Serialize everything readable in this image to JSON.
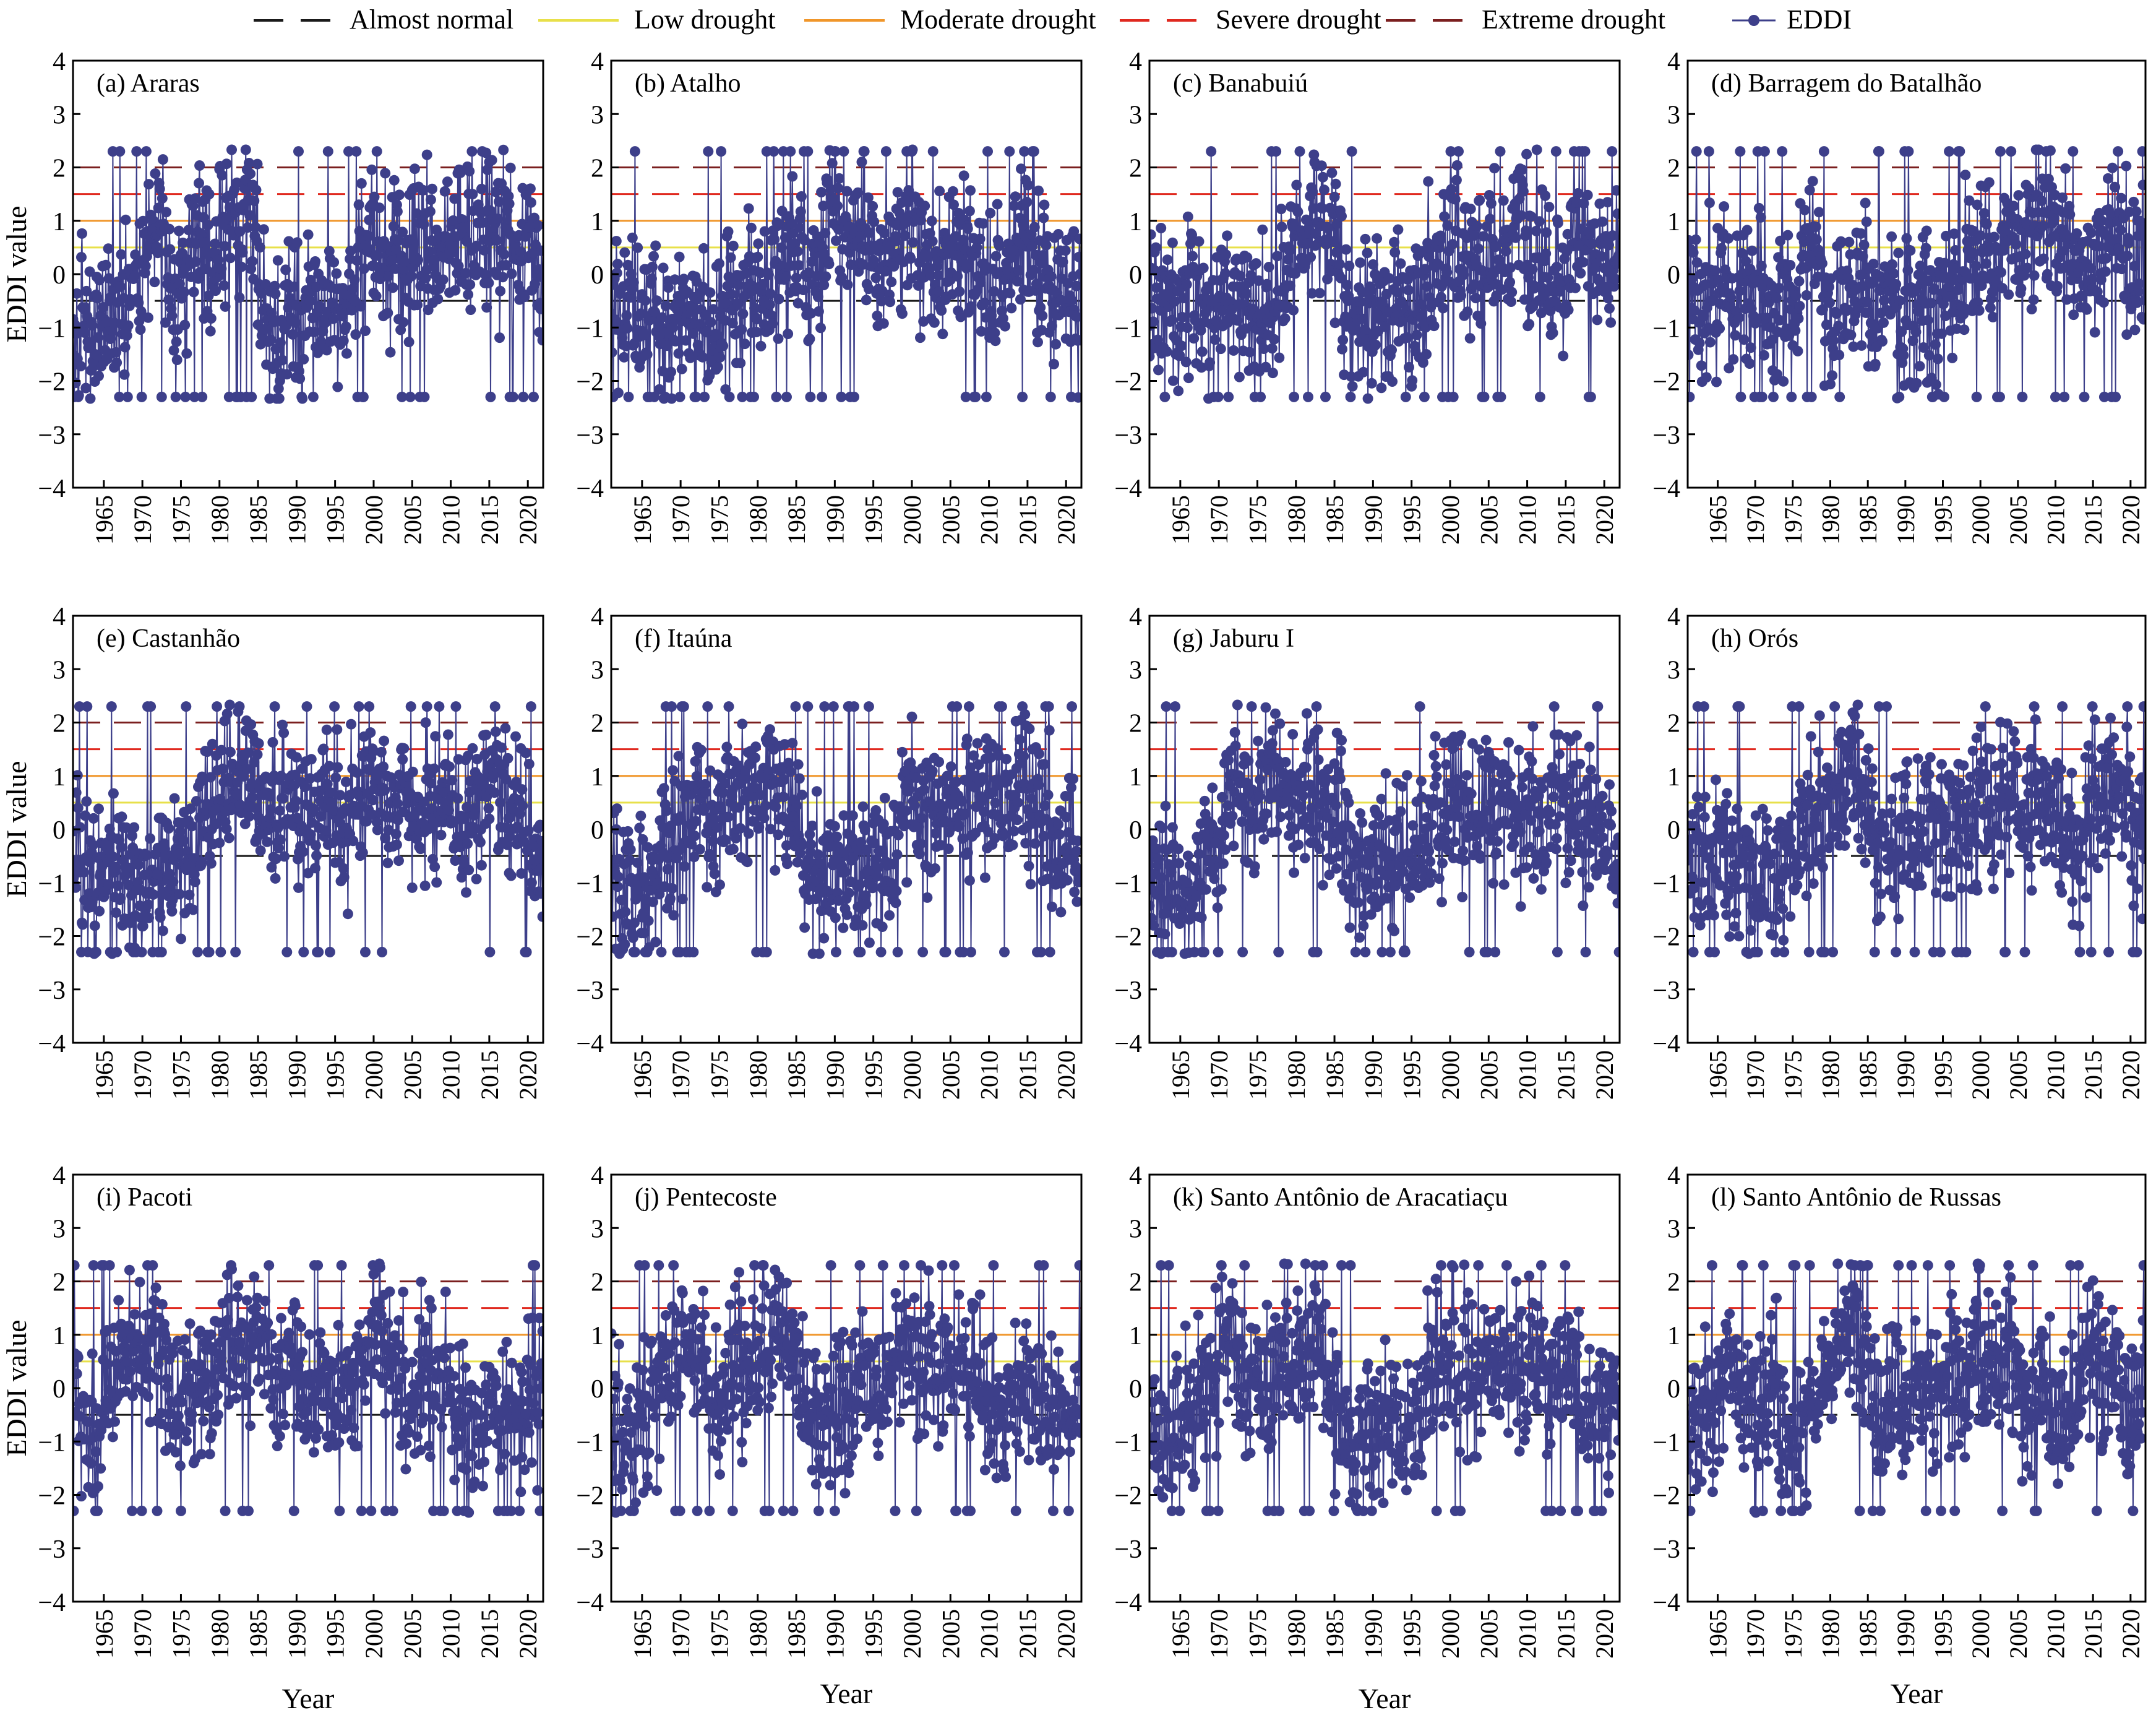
{
  "legend": {
    "items": [
      {
        "label": "Almost normal",
        "color": "#1a1a1a",
        "style": "dashed"
      },
      {
        "label": "Low drought",
        "color": "#e8e04a",
        "style": "solid"
      },
      {
        "label": "Moderate drought",
        "color": "#f0962a",
        "style": "solid"
      },
      {
        "label": "Severe drought",
        "color": "#e0291f",
        "style": "dashed"
      },
      {
        "label": "Extreme drought",
        "color": "#7b1f1f",
        "style": "dashed"
      },
      {
        "label": "EDDI",
        "color": "#3d3f8a",
        "style": "marker"
      }
    ]
  },
  "axis_text": {
    "ylabel": "EDDI value",
    "xlabel": "Year"
  },
  "chart_data": {
    "type": "line",
    "series_name": "EDDI",
    "x_range": [
      1961,
      2021
    ],
    "y_range": [
      -4,
      4
    ],
    "y_ticks": [
      "4",
      "3",
      "2",
      "1",
      "0",
      "−1",
      "−2",
      "−3",
      "−4"
    ],
    "x_ticks": [
      "1965",
      "1970",
      "1975",
      "1980",
      "1985",
      "1990",
      "1995",
      "2000",
      "2005",
      "2010",
      "2015",
      "2020"
    ],
    "x_tick_values": [
      1965,
      1970,
      1975,
      1980,
      1985,
      1990,
      1995,
      2000,
      2005,
      2010,
      2015,
      2020
    ],
    "thresholds": [
      {
        "name": "Almost normal",
        "value": -0.5,
        "color": "#1a1a1a",
        "style": "dashed"
      },
      {
        "name": "Low drought",
        "value": 0.5,
        "color": "#e8e04a",
        "style": "solid"
      },
      {
        "name": "Moderate drought",
        "value": 1.0,
        "color": "#f0962a",
        "style": "solid"
      },
      {
        "name": "Severe drought",
        "value": 1.5,
        "color": "#e0291f",
        "style": "dashed"
      },
      {
        "name": "Extreme drought",
        "value": 2.0,
        "color": "#7b1f1f",
        "style": "dashed"
      }
    ],
    "panels": [
      {
        "title": "(a) Araras",
        "yearly_mean": [
          -1.1,
          -0.9,
          -1.2,
          -0.8,
          -0.6,
          -0.9,
          -0.7,
          -0.3,
          0.0,
          0.3,
          0.9,
          1.1,
          0.2,
          -0.3,
          0.1,
          0.5,
          0.8,
          0.4,
          0.7,
          0.9,
          1.0,
          0.8,
          1.3,
          1.1,
          -0.7,
          -0.9,
          -1.2,
          -0.8,
          -0.6,
          -0.9,
          -0.7,
          -0.6,
          -0.8,
          -0.4,
          -0.6,
          -0.3,
          -0.1,
          0.3,
          0.9,
          0.4,
          0.3,
          0.4,
          0.2,
          0.5,
          0.6,
          0.7,
          0.7,
          0.5,
          0.6,
          0.9,
          0.8,
          0.6,
          0.7,
          0.8,
          0.9,
          0.6,
          0.7,
          0.5,
          0.3,
          0.2,
          0.1
        ]
      },
      {
        "title": "(b) Atalho",
        "yearly_mean": [
          -0.4,
          -0.7,
          -0.5,
          -0.9,
          -0.8,
          -0.6,
          -1.0,
          -0.9,
          -0.7,
          -0.5,
          -0.9,
          -1.1,
          -0.8,
          -1.0,
          -0.6,
          -0.3,
          -0.5,
          -0.2,
          -0.4,
          0.1,
          -0.3,
          0.3,
          0.5,
          0.6,
          0.2,
          -0.1,
          0.4,
          0.9,
          1.1,
          0.8,
          0.5,
          0.7,
          0.6,
          0.4,
          0.2,
          0.1,
          0.3,
          0.5,
          0.7,
          0.9,
          0.4,
          0.2,
          -0.1,
          0.3,
          0.5,
          0.6,
          0.2,
          0.1,
          -0.3,
          -0.5,
          -0.2,
          0.0,
          0.4,
          0.8,
          0.9,
          0.3,
          -0.1,
          -0.4,
          -0.2,
          -0.5,
          -0.6
        ]
      },
      {
        "title": "(c) Banabuiú",
        "yearly_mean": [
          -0.6,
          -0.8,
          -0.5,
          -0.9,
          -0.7,
          -0.4,
          -0.6,
          -0.8,
          -0.5,
          -0.3,
          -0.6,
          -0.4,
          -0.7,
          -0.9,
          -0.8,
          -1.0,
          -0.6,
          -0.2,
          0.3,
          0.5,
          0.8,
          1.0,
          0.9,
          0.7,
          0.4,
          -0.8,
          -1.1,
          -1.3,
          -0.7,
          -0.5,
          -0.9,
          -0.6,
          -0.4,
          -0.7,
          -0.9,
          -0.3,
          0.1,
          0.3,
          0.5,
          0.8,
          0.2,
          0.4,
          0.1,
          0.3,
          0.6,
          0.5,
          0.2,
          0.7,
          0.9,
          0.4,
          0.6,
          0.2,
          -0.3,
          -0.1,
          0.3,
          0.6,
          0.8,
          0.5,
          0.4,
          0.2,
          0.3
        ]
      },
      {
        "title": "(d) Barragem do Batalhão",
        "yearly_mean": [
          -0.5,
          -0.8,
          -0.3,
          -0.6,
          0.2,
          -0.4,
          -0.7,
          -0.2,
          -0.5,
          -0.3,
          -0.6,
          -0.9,
          -0.4,
          -0.7,
          -0.5,
          0.3,
          0.6,
          0.2,
          -0.4,
          -0.6,
          -0.3,
          -0.5,
          -0.2,
          0.1,
          -0.9,
          -1.1,
          -0.8,
          -0.6,
          -0.9,
          -0.5,
          -0.7,
          -0.4,
          -0.8,
          -0.6,
          -0.3,
          -0.5,
          -0.2,
          0.1,
          0.4,
          0.6,
          0.3,
          0.5,
          0.7,
          0.8,
          0.6,
          0.9,
          1.1,
          0.8,
          0.7,
          0.9,
          0.6,
          0.3,
          0.5,
          0.2,
          0.4,
          0.6,
          0.8,
          0.4,
          0.3,
          0.2,
          0.1
        ]
      },
      {
        "title": "(e) Castanhão",
        "yearly_mean": [
          -0.6,
          -0.8,
          -0.9,
          -1.0,
          -0.7,
          -0.9,
          -0.6,
          -0.8,
          -1.1,
          -0.9,
          -0.7,
          -0.5,
          -0.9,
          -0.6,
          -0.4,
          -0.2,
          0.1,
          0.3,
          0.5,
          0.7,
          0.9,
          1.1,
          1.0,
          1.2,
          0.6,
          0.2,
          -0.1,
          0.4,
          0.7,
          0.3,
          0.1,
          0.4,
          0.6,
          0.8,
          0.4,
          0.2,
          0.5,
          0.7,
          0.9,
          0.6,
          0.3,
          0.5,
          0.7,
          0.4,
          0.2,
          0.1,
          0.3,
          0.6,
          0.4,
          0.2,
          -0.1,
          0.3,
          0.5,
          0.7,
          0.6,
          0.8,
          0.5,
          0.3,
          0.1,
          -0.2,
          -0.4
        ]
      },
      {
        "title": "(f) Itaúna",
        "yearly_mean": [
          -1.0,
          -1.3,
          -1.1,
          -0.8,
          -1.2,
          -0.9,
          -0.6,
          -0.4,
          -0.2,
          0.1,
          0.4,
          0.8,
          0.3,
          -0.2,
          0.2,
          0.5,
          0.7,
          0.4,
          0.6,
          0.8,
          0.9,
          0.7,
          0.5,
          0.6,
          0.3,
          -0.6,
          -0.9,
          -1.1,
          -0.7,
          -0.5,
          -0.8,
          -0.6,
          -0.4,
          -0.7,
          -0.3,
          -0.5,
          -0.2,
          0.1,
          0.3,
          0.5,
          0.2,
          0.4,
          0.1,
          0.2,
          0.3,
          0.4,
          0.6,
          0.5,
          0.3,
          0.7,
          0.6,
          0.4,
          0.8,
          0.9,
          0.5,
          0.3,
          0.2,
          -0.1,
          -0.3,
          -0.2,
          -0.4
        ]
      },
      {
        "title": "(g) Jaburu I",
        "yearly_mean": [
          -0.8,
          -1.0,
          -1.2,
          -0.9,
          -1.1,
          -0.7,
          -0.9,
          -0.5,
          -0.3,
          0.1,
          0.5,
          0.8,
          0.4,
          0.2,
          0.6,
          0.9,
          1.1,
          0.8,
          0.6,
          0.9,
          1.0,
          0.7,
          0.5,
          0.6,
          0.3,
          -0.5,
          -0.8,
          -1.0,
          -0.6,
          -0.4,
          -0.7,
          -0.5,
          -0.3,
          -0.6,
          -0.2,
          -0.4,
          -0.1,
          0.2,
          0.4,
          0.6,
          0.3,
          0.5,
          0.2,
          0.4,
          0.5,
          0.3,
          0.6,
          0.4,
          0.2,
          0.5,
          0.3,
          0.1,
          0.4,
          0.6,
          0.2,
          0.4,
          0.3,
          0.1,
          -0.1,
          -0.3,
          -0.5
        ]
      },
      {
        "title": "(h) Orós",
        "yearly_mean": [
          -0.7,
          -0.5,
          -0.9,
          -0.4,
          0.3,
          -0.6,
          -0.8,
          -0.5,
          -0.9,
          -1.0,
          -0.7,
          -1.1,
          -0.8,
          -0.6,
          -0.4,
          -0.2,
          0.1,
          0.3,
          0.5,
          0.6,
          0.8,
          0.9,
          1.0,
          0.7,
          0.4,
          -0.5,
          -0.7,
          -0.4,
          -0.2,
          0.1,
          -0.1,
          0.2,
          0.3,
          0.1,
          -0.2,
          0.0,
          0.3,
          0.5,
          0.6,
          0.4,
          0.2,
          0.5,
          0.7,
          0.9,
          0.6,
          0.3,
          0.5,
          0.7,
          0.4,
          0.1,
          -0.3,
          -0.6,
          -0.2,
          0.3,
          0.5,
          0.7,
          0.8,
          0.5,
          0.3,
          0.1,
          -0.3
        ]
      },
      {
        "title": "(i) Pacoti",
        "yearly_mean": [
          -0.4,
          -0.7,
          -0.9,
          -0.5,
          -0.2,
          0.1,
          0.4,
          0.7,
          0.9,
          1.1,
          0.8,
          0.5,
          -0.3,
          -0.7,
          -0.5,
          -0.2,
          0.1,
          0.3,
          0.6,
          0.9,
          1.0,
          0.8,
          0.7,
          0.9,
          0.6,
          0.3,
          0.1,
          0.4,
          0.6,
          0.2,
          -0.1,
          -0.3,
          0.0,
          -0.2,
          -0.4,
          -0.1,
          0.2,
          0.5,
          0.8,
          1.0,
          0.7,
          0.4,
          0.1,
          -0.2,
          0.0,
          0.2,
          -0.1,
          -0.3,
          0.1,
          -0.2,
          -0.5,
          -0.7,
          -0.4,
          -0.6,
          -0.3,
          -0.5,
          -0.2,
          -0.4,
          -0.6,
          -0.3,
          -0.5
        ]
      },
      {
        "title": "(j) Pentecoste",
        "yearly_mean": [
          -0.6,
          -0.9,
          -0.7,
          -0.4,
          -0.6,
          -0.2,
          0.1,
          0.3,
          0.6,
          0.9,
          0.5,
          0.2,
          -0.2,
          -0.4,
          -0.1,
          0.3,
          0.5,
          0.2,
          0.4,
          0.7,
          0.9,
          1.0,
          0.8,
          0.6,
          0.3,
          -0.4,
          -0.6,
          -0.3,
          -0.5,
          -0.2,
          -0.4,
          -0.1,
          0.1,
          -0.2,
          0.0,
          0.2,
          0.4,
          0.7,
          0.9,
          0.6,
          0.3,
          0.5,
          0.2,
          0.4,
          0.1,
          0.3,
          0.5,
          0.2,
          -0.1,
          -0.4,
          -0.6,
          -0.3,
          -0.1,
          0.2,
          -0.2,
          -0.4,
          -0.6,
          -0.3,
          -0.5,
          -0.7,
          -0.4
        ]
      },
      {
        "title": "(k) Santo Antônio de Aracatiaçu",
        "yearly_mean": [
          -0.8,
          -1.1,
          -1.3,
          -0.9,
          -0.6,
          -0.8,
          -0.4,
          -0.1,
          0.3,
          0.7,
          0.9,
          0.6,
          0.2,
          0.4,
          0.1,
          0.3,
          0.6,
          0.8,
          0.5,
          0.7,
          0.9,
          0.8,
          0.6,
          0.4,
          -0.5,
          -0.9,
          -1.2,
          -0.8,
          -0.6,
          -0.9,
          -0.7,
          -0.5,
          -0.8,
          -0.6,
          -0.4,
          -0.2,
          0.1,
          0.3,
          0.5,
          0.7,
          0.4,
          0.2,
          0.0,
          0.2,
          0.4,
          0.1,
          0.3,
          0.5,
          0.2,
          0.4,
          0.6,
          0.3,
          0.1,
          0.4,
          0.2,
          0.0,
          -0.3,
          -0.5,
          -0.2,
          -0.4,
          -0.3
        ]
      },
      {
        "title": "(l) Santo Antônio de Russas",
        "yearly_mean": [
          -0.6,
          -0.8,
          -0.4,
          -0.6,
          -0.2,
          0.2,
          -0.3,
          -0.5,
          -0.2,
          -0.7,
          -0.4,
          0.3,
          -0.6,
          -0.9,
          -1.1,
          -0.8,
          -0.4,
          0.2,
          0.5,
          0.8,
          1.0,
          1.1,
          0.9,
          0.7,
          0.4,
          -0.6,
          -0.4,
          -0.2,
          -0.5,
          -0.3,
          -0.1,
          0.1,
          -0.2,
          0.0,
          0.2,
          0.4,
          0.1,
          0.3,
          0.6,
          0.4,
          0.2,
          0.1,
          0.4,
          0.2,
          -0.1,
          -0.3,
          0.1,
          0.3,
          -0.2,
          -0.4,
          -0.6,
          -0.3,
          0.2,
          0.4,
          0.5,
          0.3,
          0.1,
          0.2,
          -0.1,
          -0.3,
          -0.2
        ]
      }
    ]
  }
}
